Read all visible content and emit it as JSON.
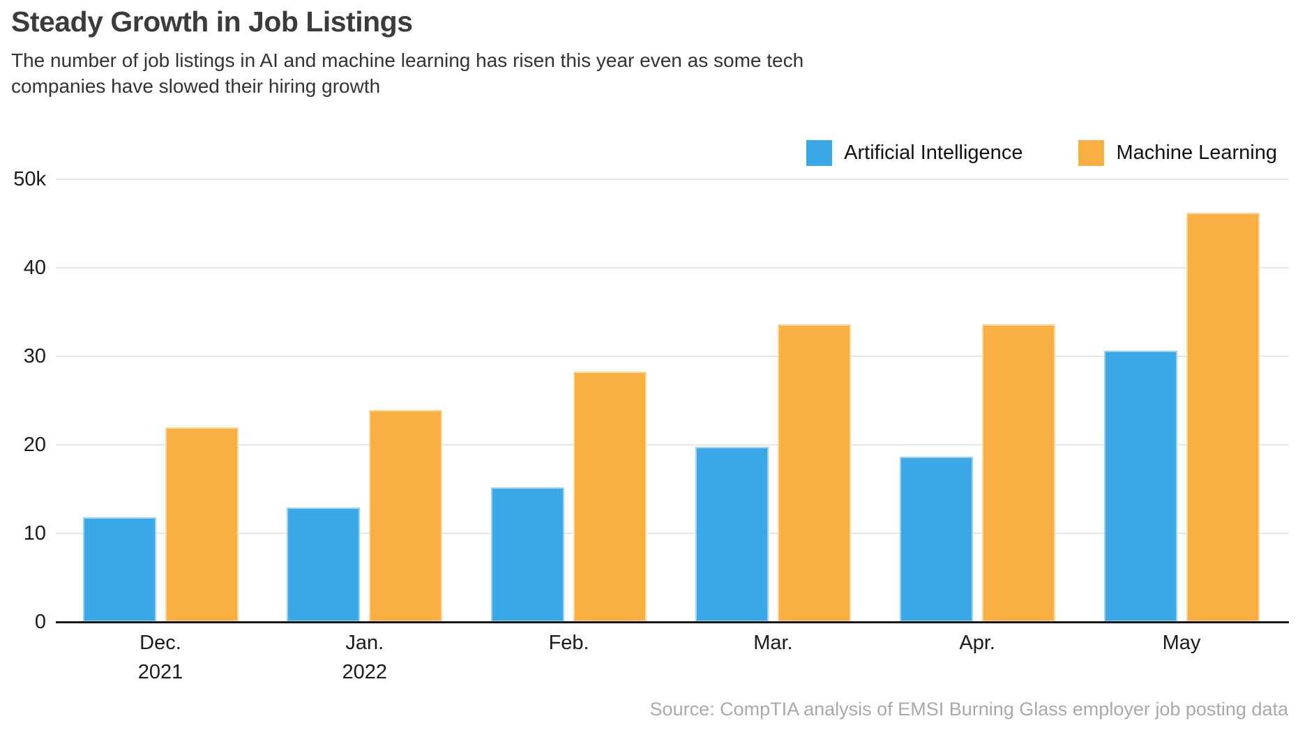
{
  "page": {
    "title": "Steady Growth in Job Listings",
    "subtitle_line1": "The number of job listings in AI and machine learning has risen this year even as some tech",
    "subtitle_line2": "companies have slowed their hiring growth",
    "source": "Source: CompTIA analysis of EMSI Burning Glass employer job posting data"
  },
  "legend": {
    "items": [
      {
        "label": "Artificial Intelligence",
        "color": "#3AA7E6"
      },
      {
        "label": "Machine Learning",
        "color": "#FAAF43"
      }
    ]
  },
  "chart_data": {
    "type": "bar",
    "title": "Steady Growth in Job Listings",
    "subtitle": "The number of job listings in AI and machine learning has risen this year even as some tech companies have slowed their hiring growth",
    "categories": [
      "Dec. 2021",
      "Jan. 2022",
      "Feb.",
      "Mar.",
      "Apr.",
      "May"
    ],
    "category_labels": [
      {
        "line1": "Dec.",
        "line2": "2021"
      },
      {
        "line1": "Jan.",
        "line2": "2022"
      },
      {
        "line1": "Feb.",
        "line2": ""
      },
      {
        "line1": "Mar.",
        "line2": ""
      },
      {
        "line1": "Apr.",
        "line2": ""
      },
      {
        "line1": "May",
        "line2": ""
      }
    ],
    "series": [
      {
        "name": "Artificial Intelligence",
        "color": "#3AA7E6",
        "edge_color": "#9BD2F1",
        "values": [
          11800,
          12900,
          15200,
          19800,
          18700,
          30600
        ]
      },
      {
        "name": "Machine Learning",
        "color": "#FAAF43",
        "edge_color": "#FCD9A0",
        "values": [
          22000,
          23900,
          28300,
          33600,
          33600,
          46200
        ]
      }
    ],
    "y_axis": {
      "min": 0,
      "max": 50000,
      "grid": true,
      "ticks": [
        {
          "value": 0,
          "label": "0"
        },
        {
          "value": 10000,
          "label": "10"
        },
        {
          "value": 20000,
          "label": "20"
        },
        {
          "value": 30000,
          "label": "30"
        },
        {
          "value": 40000,
          "label": "40"
        },
        {
          "value": 50000,
          "label": "50k"
        }
      ]
    },
    "legend_position": "top-right",
    "source": "Source: CompTIA analysis of EMSI Burning Glass employer job posting data"
  },
  "colors": {
    "ai_blue": "#3AA7E6",
    "ml_orange": "#FAAF43",
    "gridline": "#E6E6E6",
    "axis": "#151515",
    "title_text": "#3B3B3B",
    "body_text": "#333333",
    "source_text": "#A9A9A9",
    "background": "#FFFFFF"
  }
}
